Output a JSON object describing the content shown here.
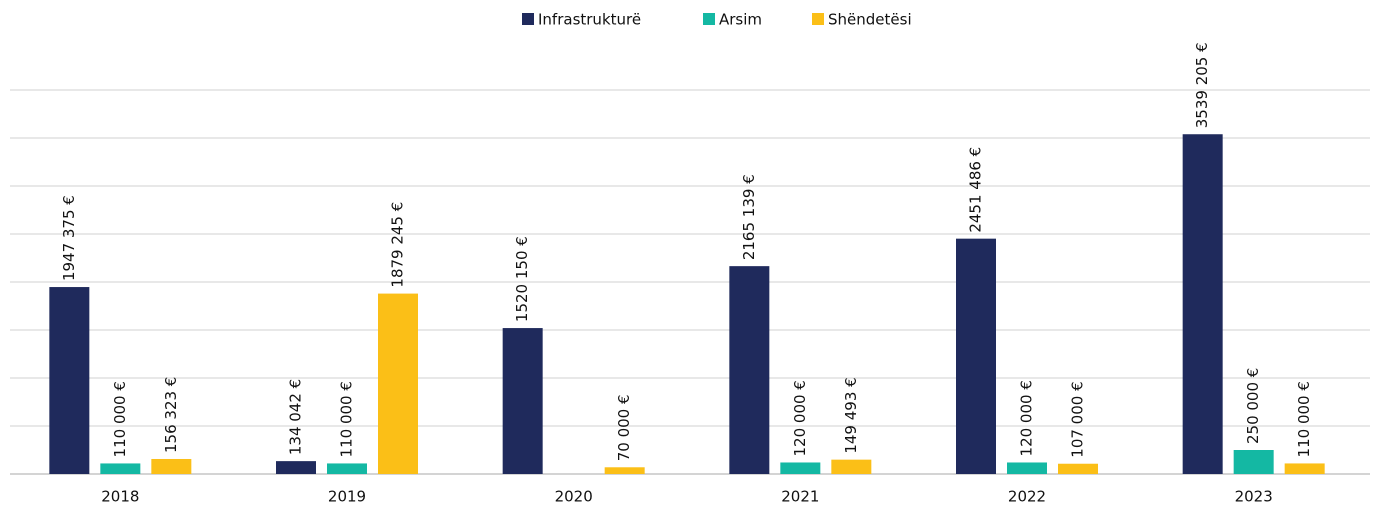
{
  "chart_data": {
    "type": "bar",
    "categories": [
      "2018",
      "2019",
      "2020",
      "2021",
      "2022",
      "2023"
    ],
    "series": [
      {
        "name": "Infrastrukturë",
        "color": "#1f2a5c",
        "values": [
          1947375,
          134042,
          1520150,
          2165139,
          2451486,
          3539205
        ],
        "value_labels": [
          "1947 375 €",
          "134 042 €",
          "1520 150 €",
          "2165 139 €",
          "2451 486 €",
          "3539 205 €"
        ]
      },
      {
        "name": "Arsim",
        "color": "#14b8a3",
        "values": [
          110000,
          110000,
          null,
          120000,
          120000,
          250000
        ],
        "value_labels": [
          "110 000 €",
          "110 000 €",
          null,
          "120 000 €",
          "120 000 €",
          "250 000 €"
        ]
      },
      {
        "name": "Shëndetësi",
        "color": "#fbbf17",
        "values": [
          156323,
          1879245,
          70000,
          149493,
          107000,
          110000
        ],
        "value_labels": [
          "156 323 €",
          "1879 245 €",
          "70 000 €",
          "149 493 €",
          "107 000 €",
          "110 000 €"
        ]
      }
    ],
    "ylim": [
      0,
      4000000
    ],
    "yticks": [
      0,
      500000,
      1000000,
      1500000,
      2000000,
      2500000,
      3000000,
      3500000,
      4000000
    ],
    "grid": true,
    "legend": "top"
  }
}
